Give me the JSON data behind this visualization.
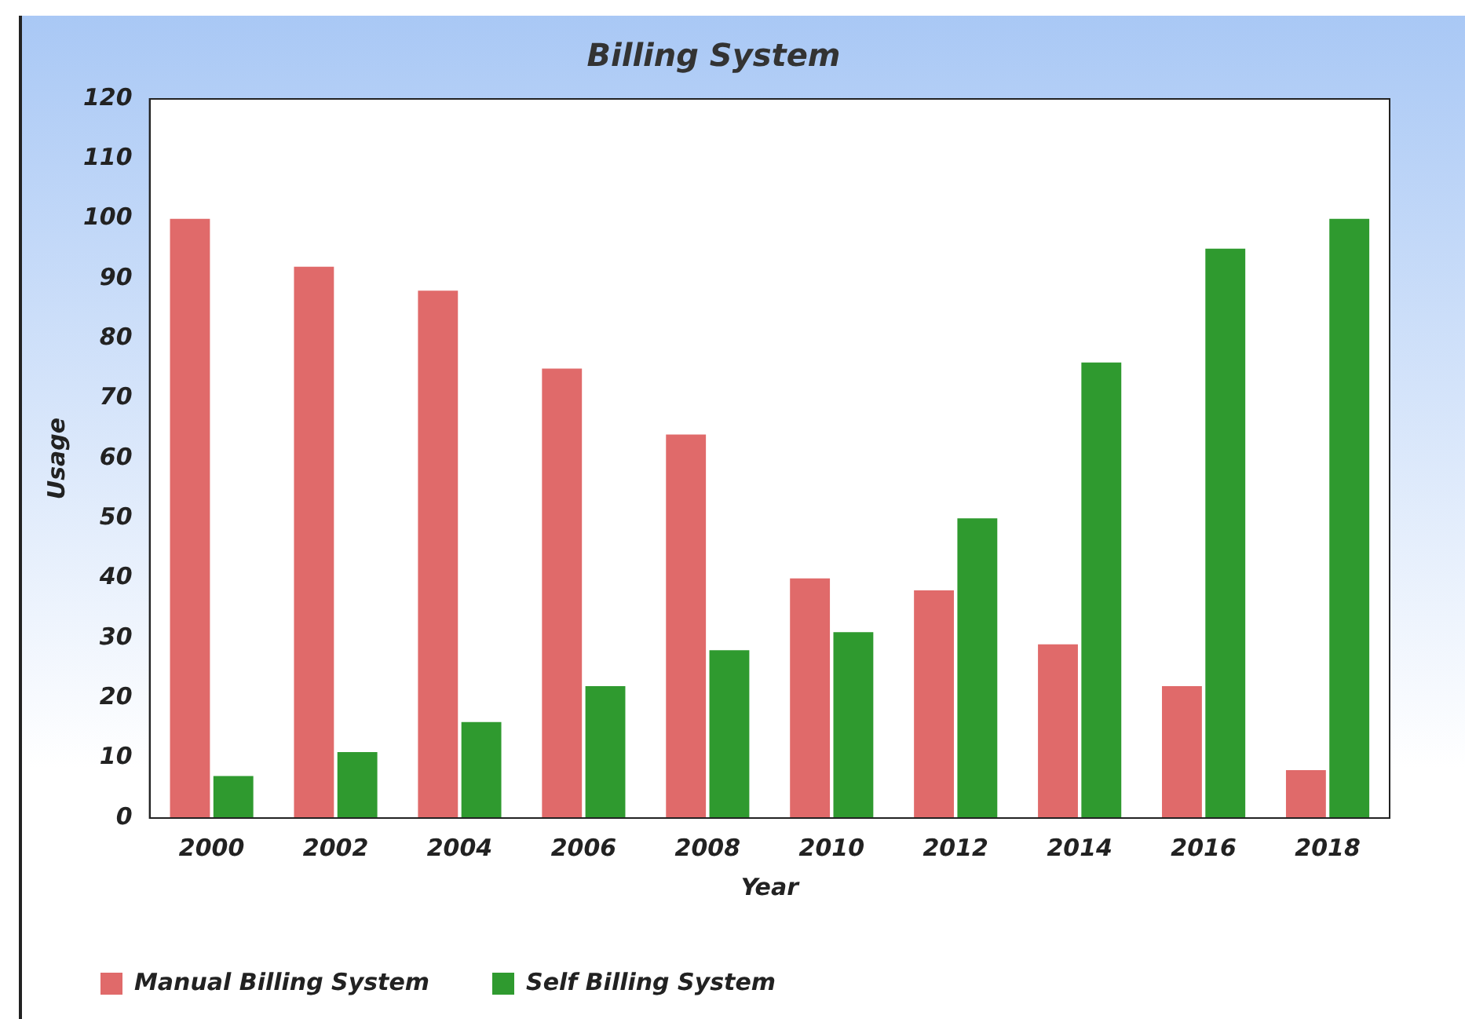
{
  "chart_data": {
    "type": "bar",
    "title": "Billing System",
    "xlabel": "Year",
    "ylabel": "Usage",
    "categories": [
      "2000",
      "2002",
      "2004",
      "2006",
      "2008",
      "2010",
      "2012",
      "2014",
      "2016",
      "2018"
    ],
    "series": [
      {
        "name": "Manual Billing System",
        "color": "#e06a6a",
        "values": [
          100,
          92,
          88,
          75,
          64,
          40,
          38,
          29,
          22,
          8
        ]
      },
      {
        "name": "Self Billing System",
        "color": "#2f9a2f",
        "values": [
          7,
          11,
          16,
          22,
          28,
          31,
          50,
          76,
          95,
          100
        ]
      }
    ],
    "ylim": [
      0,
      120
    ],
    "yticks": [
      0,
      10,
      20,
      30,
      40,
      50,
      60,
      70,
      80,
      90,
      100,
      110,
      120
    ],
    "grid": false,
    "legend": "bottom left"
  }
}
